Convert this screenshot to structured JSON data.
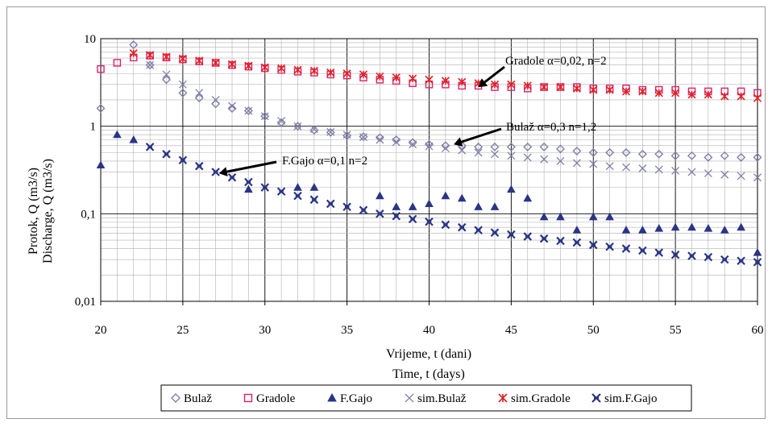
{
  "chart_data": {
    "type": "scatter",
    "x_label_1": "Vrijeme, t (dani)",
    "x_label_2": "Time, t (days)",
    "y_label_1": "Protok, Q (m3/s)",
    "y_label_2": "Discharge, Q (m3/s)",
    "x_range": [
      20,
      60
    ],
    "y_range": [
      0.01,
      10
    ],
    "y_scale": "log",
    "x_ticks": [
      "20",
      "25",
      "30",
      "35",
      "40",
      "45",
      "50",
      "55",
      "60"
    ],
    "y_ticks": [
      "0,01",
      "0,1",
      "1",
      "10"
    ],
    "grid": true,
    "legend_position": "bottom",
    "annotations": [
      {
        "text": "Gradole α=0,02, n=2",
        "x": 43,
        "y": 2.8
      },
      {
        "text": "Bulaž α=0,3 n=1,2",
        "x": 41.5,
        "y": 0.62
      },
      {
        "text": "F.Gajo α=0,1 n=2",
        "x": 27.2,
        "y": 0.29
      }
    ],
    "series": [
      {
        "name": "Bulaž",
        "marker": "diamond",
        "color": "#8080a8",
        "x": [
          20,
          22,
          23,
          24,
          25,
          26,
          27,
          28,
          29,
          30,
          31,
          32,
          33,
          34,
          35,
          36,
          37,
          38,
          39,
          40,
          41,
          42,
          43,
          44,
          45,
          46,
          47,
          48,
          49,
          50,
          51,
          52,
          53,
          54,
          55,
          56,
          57,
          58,
          59,
          60
        ],
        "y": [
          1.6,
          8.5,
          5.0,
          3.4,
          2.4,
          2.1,
          1.8,
          1.6,
          1.5,
          1.3,
          1.1,
          1.0,
          0.9,
          0.85,
          0.78,
          0.76,
          0.74,
          0.7,
          0.65,
          0.62,
          0.6,
          0.6,
          0.58,
          0.58,
          0.58,
          0.58,
          0.58,
          0.55,
          0.52,
          0.5,
          0.5,
          0.5,
          0.48,
          0.48,
          0.46,
          0.46,
          0.44,
          0.46,
          0.44,
          0.44
        ]
      },
      {
        "name": "Gradole",
        "marker": "square",
        "color": "#e02070",
        "x": [
          20,
          21,
          22,
          23,
          24,
          25,
          26,
          27,
          28,
          29,
          30,
          31,
          32,
          33,
          34,
          35,
          36,
          37,
          38,
          39,
          40,
          41,
          42,
          43,
          44,
          45,
          46,
          47,
          48,
          49,
          50,
          51,
          52,
          53,
          54,
          55,
          56,
          57,
          58,
          59,
          60
        ],
        "y": [
          4.5,
          5.3,
          6.1,
          6.4,
          6.1,
          5.8,
          5.5,
          5.3,
          5.0,
          4.8,
          4.6,
          4.4,
          4.2,
          4.1,
          3.9,
          3.8,
          3.6,
          3.4,
          3.3,
          3.1,
          3.0,
          3.0,
          2.9,
          2.9,
          2.8,
          2.8,
          2.7,
          2.8,
          2.8,
          2.8,
          2.7,
          2.7,
          2.7,
          2.6,
          2.6,
          2.6,
          2.5,
          2.5,
          2.5,
          2.5,
          2.4
        ]
      },
      {
        "name": "F.Gajo",
        "marker": "triangle",
        "color": "#2a3585",
        "x": [
          20,
          21,
          22,
          29,
          32,
          33,
          37,
          38,
          39,
          40,
          41,
          42,
          43,
          44,
          45,
          46,
          47,
          48,
          49,
          50,
          51,
          52,
          53,
          54,
          55,
          56,
          57,
          58,
          59,
          60
        ],
        "y": [
          0.36,
          0.8,
          0.7,
          0.19,
          0.2,
          0.2,
          0.16,
          0.12,
          0.12,
          0.13,
          0.16,
          0.15,
          0.12,
          0.12,
          0.19,
          0.15,
          0.092,
          0.092,
          0.065,
          0.092,
          0.092,
          0.065,
          0.065,
          0.068,
          0.07,
          0.07,
          0.068,
          0.065,
          0.07,
          0.036
        ]
      },
      {
        "name": "sim.Bulaž",
        "marker": "x",
        "color": "#8080a8",
        "x": [
          23,
          24,
          25,
          26,
          27,
          28,
          29,
          30,
          31,
          32,
          33,
          34,
          35,
          36,
          37,
          38,
          39,
          40,
          41,
          42,
          43,
          44,
          45,
          46,
          47,
          48,
          49,
          50,
          51,
          52,
          53,
          54,
          55,
          56,
          57,
          58,
          59,
          60
        ],
        "y": [
          5.0,
          3.9,
          3.0,
          2.4,
          2.0,
          1.7,
          1.5,
          1.3,
          1.15,
          1.0,
          0.93,
          0.86,
          0.8,
          0.75,
          0.7,
          0.66,
          0.62,
          0.59,
          0.56,
          0.53,
          0.5,
          0.48,
          0.46,
          0.44,
          0.42,
          0.4,
          0.38,
          0.37,
          0.35,
          0.34,
          0.33,
          0.32,
          0.31,
          0.3,
          0.29,
          0.28,
          0.27,
          0.26
        ]
      },
      {
        "name": "sim.Gradole",
        "marker": "asterisk",
        "color": "#e02020",
        "x": [
          22,
          23,
          24,
          25,
          26,
          27,
          28,
          29,
          30,
          31,
          32,
          33,
          34,
          35,
          36,
          37,
          38,
          39,
          40,
          41,
          42,
          43,
          44,
          45,
          46,
          47,
          48,
          49,
          50,
          51,
          52,
          53,
          54,
          55,
          56,
          57,
          58,
          59,
          60
        ],
        "y": [
          6.8,
          6.5,
          6.2,
          5.9,
          5.6,
          5.3,
          5.1,
          4.9,
          4.7,
          4.6,
          4.4,
          4.3,
          4.1,
          4.0,
          3.9,
          3.7,
          3.6,
          3.5,
          3.4,
          3.3,
          3.2,
          3.1,
          3.0,
          3.0,
          2.9,
          2.8,
          2.8,
          2.7,
          2.6,
          2.6,
          2.5,
          2.5,
          2.4,
          2.4,
          2.3,
          2.3,
          2.2,
          2.2,
          2.1
        ]
      },
      {
        "name": "sim.F.Gajo",
        "marker": "starx",
        "color": "#2a3585",
        "x": [
          23,
          24,
          25,
          26,
          27,
          28,
          29,
          30,
          31,
          32,
          33,
          34,
          35,
          36,
          37,
          38,
          39,
          40,
          41,
          42,
          43,
          44,
          45,
          46,
          47,
          48,
          49,
          50,
          51,
          52,
          53,
          54,
          55,
          56,
          57,
          58,
          59,
          60
        ],
        "y": [
          0.58,
          0.48,
          0.41,
          0.35,
          0.3,
          0.26,
          0.23,
          0.2,
          0.18,
          0.16,
          0.145,
          0.13,
          0.12,
          0.11,
          0.1,
          0.094,
          0.087,
          0.081,
          0.075,
          0.07,
          0.065,
          0.061,
          0.058,
          0.055,
          0.052,
          0.049,
          0.047,
          0.044,
          0.042,
          0.04,
          0.038,
          0.036,
          0.034,
          0.033,
          0.032,
          0.03,
          0.029,
          0.028
        ]
      }
    ]
  }
}
